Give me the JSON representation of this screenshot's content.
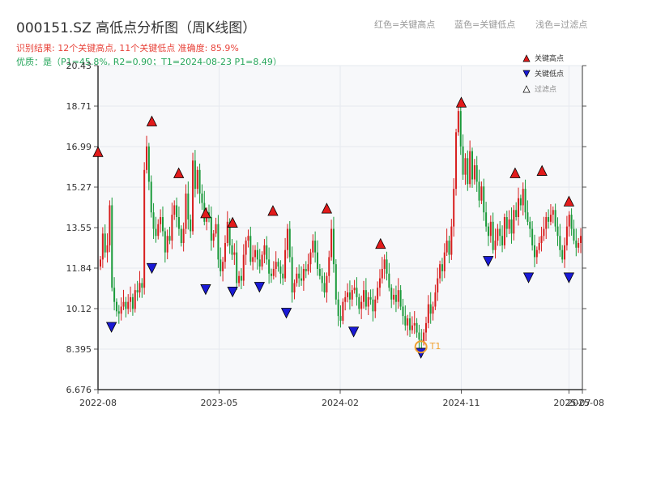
{
  "title": "000151.SZ 高低点分析图（周K线图）",
  "subtitle_line1": "识别结果: 12个关键高点, 11个关键低点  准确度: 85.9%",
  "subtitle_line2": "优质：是（P1=45.8%, R2=0.90；T1=2024-08-23 P1=8.49）",
  "top_legend": [
    "红色=关键高点",
    "蓝色=关键低点",
    "浅色=过滤点"
  ],
  "colors": {
    "high": "#e21b1b",
    "low": "#1a1ad6",
    "up": "#d81e1e",
    "down": "#1a9a3a",
    "t1": "#f0a030",
    "grid": "#e6e9ef",
    "plot_bg": "#f7f8fa"
  },
  "chart_data": {
    "type": "candlestick",
    "x_tick_labels": [
      "2022-08",
      "2023-05",
      "2024-02",
      "2024-11",
      "2025-07",
      "2025-08"
    ],
    "y_tick_labels": [
      "6.676",
      "8.395",
      "10.12",
      "11.84",
      "13.55",
      "15.27",
      "16.99",
      "18.71",
      "20.43"
    ],
    "ylim": [
      6.676,
      20.43
    ],
    "xlim": [
      "2022-08",
      "2025-08"
    ],
    "grid": true,
    "legend_position": "top-right",
    "legend": [
      {
        "label": "关键高点",
        "marker": "triangle-up",
        "color": "#e21b1b"
      },
      {
        "label": "关键低点",
        "marker": "triangle-down",
        "color": "#1a1ad6"
      },
      {
        "label": "过滤点",
        "marker": "triangle-up-hollow",
        "color": "#ffffff"
      }
    ],
    "key_highs": [
      {
        "date": "2022-08",
        "value": 16.5
      },
      {
        "date": "2022-12",
        "value": 17.8
      },
      {
        "date": "2023-02",
        "value": 15.6
      },
      {
        "date": "2023-04",
        "value": 13.9
      },
      {
        "date": "2023-06",
        "value": 13.5
      },
      {
        "date": "2023-09",
        "value": 14.0
      },
      {
        "date": "2024-01",
        "value": 14.1
      },
      {
        "date": "2024-05",
        "value": 12.6
      },
      {
        "date": "2024-11",
        "value": 18.6
      },
      {
        "date": "2025-03",
        "value": 15.6
      },
      {
        "date": "2025-05",
        "value": 15.7
      },
      {
        "date": "2025-07",
        "value": 14.4
      }
    ],
    "key_lows": [
      {
        "date": "2022-09",
        "value": 9.6
      },
      {
        "date": "2022-12",
        "value": 12.1
      },
      {
        "date": "2023-04",
        "value": 11.2
      },
      {
        "date": "2023-06",
        "value": 11.1
      },
      {
        "date": "2023-08",
        "value": 11.3
      },
      {
        "date": "2023-10",
        "value": 10.2
      },
      {
        "date": "2024-03",
        "value": 9.4
      },
      {
        "date": "2024-08",
        "value": 8.5
      },
      {
        "date": "2025-01",
        "value": 12.4
      },
      {
        "date": "2025-04",
        "value": 11.7
      },
      {
        "date": "2025-07",
        "value": 11.7
      }
    ],
    "t1": {
      "label": "T1",
      "date": "2024-08",
      "value": 8.49
    },
    "weekly_closes": [
      12.2,
      13.3,
      12.5,
      12.8,
      14.5,
      11.0,
      10.4,
      10.0,
      9.9,
      10.2,
      10.4,
      10.1,
      10.4,
      10.6,
      10.1,
      10.9,
      10.8,
      11.2,
      11.0,
      16.0,
      17.0,
      15.5,
      14.2,
      13.5,
      13.2,
      13.7,
      14.0,
      13.4,
      12.5,
      13.2,
      13.0,
      14.1,
      14.5,
      14.0,
      13.5,
      12.9,
      13.5,
      15.0,
      13.9,
      13.4,
      16.4,
      15.2,
      16.0,
      15.0,
      14.6,
      13.8,
      14.2,
      14.0,
      13.0,
      13.3,
      13.7,
      12.2,
      11.7,
      12.1,
      12.9,
      13.8,
      12.8,
      12.4,
      12.5,
      11.2,
      11.5,
      11.3,
      12.4,
      13.0,
      13.2,
      12.1,
      12.3,
      12.6,
      12.2,
      11.9,
      12.4,
      12.8,
      12.2,
      11.6,
      11.5,
      11.8,
      12.1,
      11.9,
      11.6,
      11.4,
      12.6,
      13.5,
      12.3,
      10.8,
      11.2,
      11.6,
      11.4,
      11.3,
      11.8,
      11.7,
      12.0,
      12.5,
      13.0,
      12.5,
      11.8,
      11.5,
      11.2,
      10.8,
      11.5,
      12.3,
      13.5,
      12.0,
      10.5,
      9.8,
      9.6,
      10.4,
      10.6,
      10.8,
      10.5,
      10.9,
      11.0,
      10.6,
      10.1,
      10.4,
      10.9,
      10.2,
      10.6,
      10.5,
      10.0,
      10.5,
      11.0,
      11.4,
      11.8,
      12.2,
      11.6,
      11.0,
      10.5,
      10.7,
      10.4,
      10.9,
      10.2,
      9.8,
      9.4,
      9.7,
      9.2,
      9.4,
      9.5,
      9.1,
      8.8,
      8.7,
      9.1,
      9.5,
      10.3,
      9.9,
      10.2,
      10.8,
      11.4,
      12.0,
      11.7,
      12.5,
      13.0,
      12.4,
      13.6,
      15.2,
      17.6,
      18.5,
      17.0,
      15.8,
      16.5,
      15.4,
      16.8,
      15.6,
      16.2,
      15.5,
      14.7,
      15.3,
      14.2,
      13.6,
      13.2,
      13.8,
      12.6,
      13.0,
      13.5,
      13.2,
      12.8,
      14.0,
      13.5,
      13.9,
      13.3,
      14.3,
      14.0,
      14.8,
      14.5,
      15.2,
      14.2,
      13.8,
      13.5,
      12.8,
      12.3,
      12.6,
      12.9,
      13.2,
      13.5,
      14.0,
      13.8,
      14.1,
      14.3,
      13.6,
      13.2,
      12.6,
      12.2,
      12.8,
      13.6,
      14.1,
      13.5,
      13.0,
      12.7,
      12.9,
      13.2
    ]
  }
}
